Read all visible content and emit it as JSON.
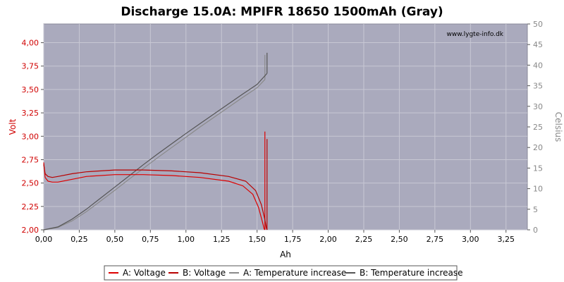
{
  "chart_data": {
    "type": "line",
    "title": "Discharge 15.0A: MPIFR 18650 1500mAh (Gray)",
    "watermark": "www.lygte-info.dk",
    "xlabel": "Ah",
    "ylabel": "Volt",
    "y2label": "Celsius",
    "xlim": [
      0,
      3.4
    ],
    "ylim": [
      2.0,
      4.2
    ],
    "y2lim": [
      0,
      50
    ],
    "xticks": [
      "0,00",
      "0,25",
      "0,50",
      "0,75",
      "1,00",
      "1,25",
      "1,50",
      "1,75",
      "2,00",
      "2,25",
      "2,50",
      "2,75",
      "3,00",
      "3,25"
    ],
    "yticks": [
      "2,00",
      "2,25",
      "2,50",
      "2,75",
      "3,00",
      "3,25",
      "3,50",
      "3,75",
      "4,00"
    ],
    "y2ticks": [
      "0",
      "5",
      "10",
      "15",
      "20",
      "25",
      "30",
      "35",
      "40",
      "45",
      "50"
    ],
    "grid": true,
    "legend_position": "bottom",
    "colors": {
      "plot_bg": "#aaaabd",
      "grid": "#c8c8d4",
      "voltage_a": "#dd0000",
      "voltage_b": "#b80000",
      "temp_a": "#8a8a8a",
      "temp_b": "#555555",
      "left_axis": "#d00000",
      "right_axis": "#888888"
    },
    "series": [
      {
        "name": "A: Voltage",
        "axis": "left",
        "color_key": "voltage_a",
        "x": [
          0.0,
          0.01,
          0.03,
          0.06,
          0.1,
          0.2,
          0.3,
          0.5,
          0.7,
          0.9,
          1.1,
          1.3,
          1.4,
          1.47,
          1.51,
          1.535,
          1.55,
          1.555
        ],
        "y": [
          2.72,
          2.56,
          2.52,
          2.51,
          2.51,
          2.54,
          2.57,
          2.59,
          2.59,
          2.58,
          2.56,
          2.52,
          2.47,
          2.38,
          2.24,
          2.1,
          2.01,
          2.0
        ],
        "spike_x": 1.555,
        "spike_y": 3.05
      },
      {
        "name": "B: Voltage",
        "axis": "left",
        "color_key": "voltage_b",
        "x": [
          0.0,
          0.01,
          0.03,
          0.06,
          0.1,
          0.2,
          0.3,
          0.5,
          0.7,
          0.9,
          1.1,
          1.3,
          1.42,
          1.49,
          1.53,
          1.555,
          1.565,
          1.57
        ],
        "y": [
          2.7,
          2.6,
          2.57,
          2.56,
          2.57,
          2.6,
          2.62,
          2.64,
          2.64,
          2.63,
          2.61,
          2.57,
          2.52,
          2.42,
          2.27,
          2.11,
          2.02,
          2.0
        ],
        "spike_x": 1.57,
        "spike_y": 2.97
      },
      {
        "name": "A: Temperature increase",
        "axis": "right",
        "color_key": "temp_a",
        "x": [
          0.0,
          0.1,
          0.2,
          0.3,
          0.4,
          0.5,
          0.6,
          0.7,
          0.8,
          0.9,
          1.0,
          1.1,
          1.2,
          1.3,
          1.4,
          1.5,
          1.555
        ],
        "y": [
          0,
          0.6,
          2.2,
          4.4,
          7.0,
          9.6,
          12.3,
          14.9,
          17.5,
          20.0,
          22.5,
          25.0,
          27.4,
          29.8,
          32.2,
          34.5,
          36.5
        ],
        "spike_x": 1.555,
        "spike_y": 42.5
      },
      {
        "name": "B: Temperature increase",
        "axis": "right",
        "color_key": "temp_b",
        "x": [
          0.0,
          0.1,
          0.2,
          0.3,
          0.4,
          0.5,
          0.6,
          0.7,
          0.8,
          0.9,
          1.0,
          1.1,
          1.2,
          1.3,
          1.4,
          1.5,
          1.57
        ],
        "y": [
          0,
          0.7,
          2.6,
          5.0,
          7.7,
          10.4,
          13.1,
          15.8,
          18.4,
          20.9,
          23.4,
          25.8,
          28.2,
          30.6,
          33.0,
          35.3,
          38.0
        ],
        "spike_x": 1.57,
        "spike_y": 43.0
      }
    ]
  }
}
